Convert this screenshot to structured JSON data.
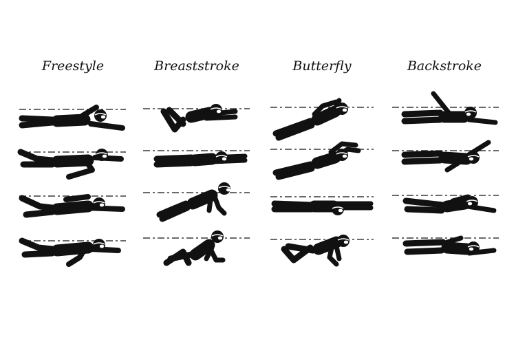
{
  "colors": {
    "ink": "#111111",
    "background": "#ffffff"
  },
  "columns": [
    {
      "title": "Freestyle",
      "figures": [
        {
          "name": "freestyle-phase-1",
          "icon": "freestyle-swimmer-icon"
        },
        {
          "name": "freestyle-phase-2",
          "icon": "freestyle-swimmer-icon"
        },
        {
          "name": "freestyle-phase-3",
          "icon": "freestyle-swimmer-icon"
        },
        {
          "name": "freestyle-phase-4",
          "icon": "freestyle-swimmer-icon"
        }
      ]
    },
    {
      "title": "Breaststroke",
      "figures": [
        {
          "name": "breaststroke-phase-1",
          "icon": "breaststroke-swimmer-icon"
        },
        {
          "name": "breaststroke-phase-2",
          "icon": "breaststroke-swimmer-icon"
        },
        {
          "name": "breaststroke-phase-3",
          "icon": "breaststroke-swimmer-icon"
        },
        {
          "name": "breaststroke-phase-4",
          "icon": "breaststroke-swimmer-icon"
        }
      ]
    },
    {
      "title": "Butterfly",
      "figures": [
        {
          "name": "butterfly-phase-1",
          "icon": "butterfly-swimmer-icon"
        },
        {
          "name": "butterfly-phase-2",
          "icon": "butterfly-swimmer-icon"
        },
        {
          "name": "butterfly-phase-3",
          "icon": "butterfly-swimmer-icon"
        },
        {
          "name": "butterfly-phase-4",
          "icon": "butterfly-swimmer-icon"
        }
      ]
    },
    {
      "title": "Backstroke",
      "figures": [
        {
          "name": "backstroke-phase-1",
          "icon": "backstroke-swimmer-icon"
        },
        {
          "name": "backstroke-phase-2",
          "icon": "backstroke-swimmer-icon"
        },
        {
          "name": "backstroke-phase-3",
          "icon": "backstroke-swimmer-icon"
        },
        {
          "name": "backstroke-phase-4",
          "icon": "backstroke-swimmer-icon"
        }
      ]
    }
  ]
}
